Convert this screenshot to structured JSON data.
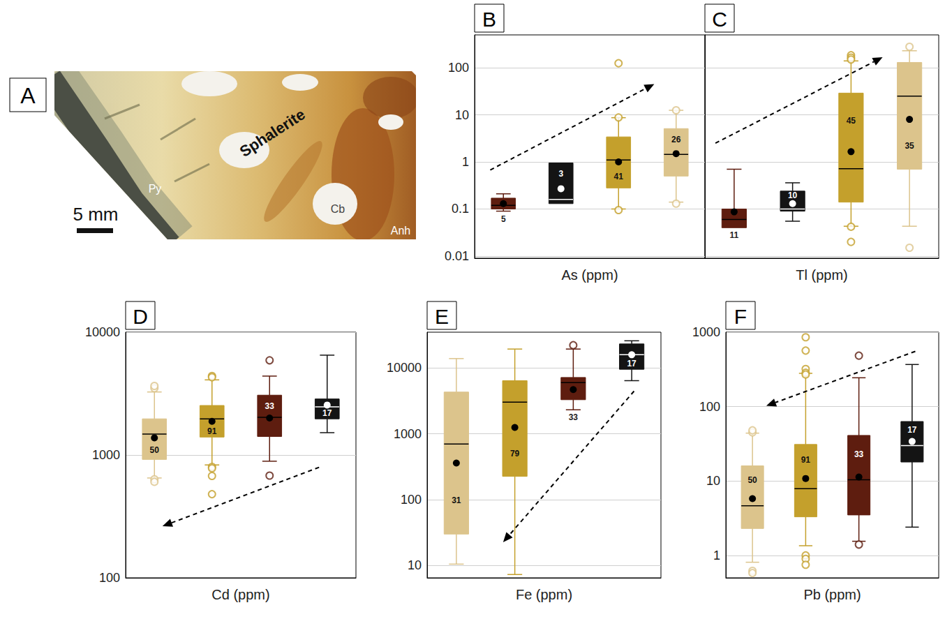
{
  "panel_a": {
    "letter": "A",
    "labels": {
      "sphalerite": "Sphalerite",
      "pyrite": "Py",
      "carbonate": "Cb",
      "anhydrite": "Anh"
    },
    "scale_bar": "5 mm"
  },
  "chart_data": [
    {
      "type": "boxplot",
      "panel": "B",
      "x_label": "As (ppm)",
      "categories": [
        null,
        null,
        null,
        null
      ],
      "colors": [
        "#5e1d0f",
        "#141414",
        "#c4a02c",
        "#dcc48c"
      ],
      "n": [
        5,
        3,
        41,
        26
      ],
      "min": [
        0.09,
        0.13,
        0.1,
        0.14
      ],
      "q1": [
        0.1,
        0.13,
        0.28,
        0.5
      ],
      "median": [
        0.12,
        0.16,
        1.1,
        1.45
      ],
      "q3": [
        0.17,
        0.95,
        3.4,
        5.1
      ],
      "max": [
        0.21,
        0.95,
        8.7,
        12.5
      ],
      "mean": [
        0.13,
        0.27,
        1.0,
        1.5
      ],
      "outliers": [
        [],
        [],
        [
          125,
          8.8,
          0.095
        ],
        [
          12.5,
          0.13
        ]
      ],
      "ylim": [
        0.009,
        500
      ],
      "yticks": [
        0.01,
        0.1,
        1,
        10,
        100
      ],
      "log": "y",
      "grid": true,
      "tick_labels": "y"
    },
    {
      "type": "boxplot",
      "panel": "C",
      "x_label": "Tl (ppm)",
      "categories": [
        null,
        null,
        null,
        null
      ],
      "colors": [
        "#5e1d0f",
        "#141414",
        "#c4a02c",
        "#dcc48c"
      ],
      "n": [
        11,
        10,
        45,
        35
      ],
      "min": [
        0.04,
        0.055,
        0.043,
        0.043
      ],
      "q1": [
        0.04,
        0.09,
        0.14,
        0.7
      ],
      "median": [
        0.06,
        0.1,
        0.72,
        25
      ],
      "q3": [
        0.1,
        0.24,
        29,
        130
      ],
      "max": [
        0.7,
        0.36,
        140,
        230
      ],
      "mean": [
        0.087,
        0.13,
        1.65,
        8
      ],
      "outliers": [
        [],
        [],
        [
          185,
          165,
          150,
          0.042,
          0.02
        ],
        [
          280,
          0.015
        ]
      ],
      "ylim": [
        0.009,
        500
      ],
      "yticks": [
        0.01,
        0.1,
        1,
        10,
        100
      ],
      "log": "y",
      "grid": true,
      "tick_labels": false
    },
    {
      "type": "boxplot",
      "panel": "D",
      "x_label": "Cd (ppm)",
      "categories": [
        null,
        null,
        null,
        null
      ],
      "colors": [
        "#dcc48c",
        "#c4a02c",
        "#5e1d0f",
        "#141414"
      ],
      "n": [
        50,
        91,
        33,
        17
      ],
      "min": [
        650,
        830,
        890,
        1520
      ],
      "q1": [
        920,
        1400,
        1415,
        1970
      ],
      "median": [
        1480,
        1970,
        2030,
        2470
      ],
      "q3": [
        1970,
        2530,
        3070,
        2860
      ],
      "max": [
        3260,
        4090,
        4390,
        6500
      ],
      "mean": [
        1380,
        1880,
        2000,
        2550
      ],
      "outliers": [
        [
          3500,
          3650,
          635,
          605
        ],
        [
          4400,
          4300,
          800,
          780,
          675,
          480
        ],
        [
          5900,
          680
        ],
        []
      ],
      "ylim": [
        100,
        10000
      ],
      "yticks": [
        100,
        1000,
        10000
      ],
      "log": "y",
      "grid": true,
      "tick_labels": "y"
    },
    {
      "type": "boxplot",
      "panel": "E",
      "x_label": "Fe (ppm)",
      "categories": [
        null,
        null,
        null,
        null
      ],
      "colors": [
        "#dcc48c",
        "#c4a02c",
        "#5e1d0f",
        "#141414"
      ],
      "n": [
        31,
        79,
        33,
        17
      ],
      "min": [
        10.5,
        7.3,
        2320,
        6420
      ],
      "q1": [
        30,
        226,
        3300,
        9560
      ],
      "median": [
        700,
        3030,
        6000,
        15900
      ],
      "q3": [
        4310,
        6420,
        7180,
        23200
      ],
      "max": [
        13900,
        19400,
        19400,
        25900
      ],
      "mean": [
        360,
        1250,
        4700,
        15900
      ],
      "outliers": [
        [],
        [],
        [
          22200
        ],
        []
      ],
      "ylim": [
        6.5,
        35000
      ],
      "yticks": [
        10,
        100,
        1000,
        10000
      ],
      "log": "y",
      "grid": true,
      "tick_labels": "y"
    },
    {
      "type": "boxplot",
      "panel": "F",
      "x_label": "Pb (ppm)",
      "categories": [
        null,
        null,
        null,
        null
      ],
      "colors": [
        "#dcc48c",
        "#c4a02c",
        "#5e1d0f",
        "#141414"
      ],
      "n": [
        50,
        91,
        33,
        17
      ],
      "min": [
        0.81,
        1.35,
        1.55,
        2.4
      ],
      "q1": [
        2.3,
        3.3,
        3.5,
        18
      ],
      "median": [
        4.65,
        7.9,
        10.4,
        30
      ],
      "q3": [
        16,
        31,
        41,
        63
      ],
      "max": [
        44,
        280,
        244,
        368
      ],
      "mean": [
        5.8,
        10.8,
        11.3,
        34
      ],
      "outliers": [
        [
          45,
          48,
          0.62,
          0.58
        ],
        [
          855,
          566,
          320,
          285,
          270,
          1.0,
          0.9,
          0.75
        ],
        [
          484,
          1.4
        ],
        []
      ],
      "ylim": [
        0.5,
        1000
      ],
      "yticks": [
        1,
        10,
        100,
        1000
      ],
      "log": "y",
      "grid": true,
      "tick_labels": "y"
    }
  ]
}
